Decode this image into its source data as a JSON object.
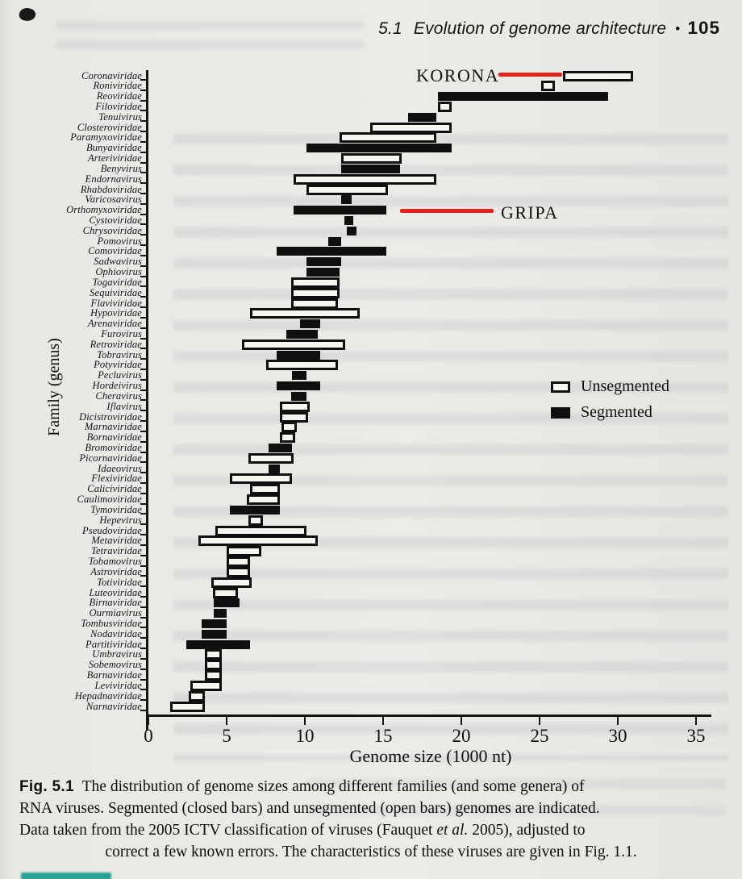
{
  "page": {
    "header": {
      "section_number": "5.1",
      "title": "Evolution of genome architecture",
      "bullet": "•",
      "page_number": "105"
    },
    "annotations": [
      {
        "text": "KORONA",
        "color": "#e3241e",
        "target_family": "Coronaviridae"
      },
      {
        "text": "GRIPA",
        "color": "#e3241e",
        "target_family": "Orthomyxoviridae"
      }
    ],
    "caption": {
      "fig_label": "Fig. 5.1",
      "line1_rest": "The distribution of genome sizes among different families (and some genera) of",
      "line2": "RNA viruses. Segmented (closed bars) and unsegmented (open bars) genomes are indicated.",
      "line3_pre": "Data taken from the 2005 ICTV classification of viruses (Fauquet ",
      "line3_italic": "et al.",
      "line3_post": " 2005), adjusted to",
      "line4": "correct a few known errors. The characteristics of these viruses are given in Fig. 1.1."
    }
  },
  "chart_data": {
    "type": "bar",
    "subtype": "horizontal-range-bars",
    "title": "",
    "xlabel": "Genome size (1000 nt)",
    "ylabel": "Family (genus)",
    "xlim": [
      0,
      35
    ],
    "xticks": [
      0,
      5,
      10,
      15,
      20,
      25,
      30,
      35
    ],
    "grid": false,
    "legend_position": "right-middle",
    "legend": [
      {
        "label": "Unsegmented",
        "style": "open"
      },
      {
        "label": "Segmented",
        "style": "closed"
      }
    ],
    "families": [
      {
        "name": "Coronaviridae",
        "min": 26.5,
        "max": 31.0,
        "segmented": false
      },
      {
        "name": "Roniviridae",
        "min": 25.1,
        "max": 26.0,
        "segmented": false
      },
      {
        "name": "Reoviridae",
        "min": 18.5,
        "max": 29.4,
        "segmented": true
      },
      {
        "name": "Filoviridae",
        "min": 18.5,
        "max": 19.4,
        "segmented": false
      },
      {
        "name": "Tenuivirus",
        "min": 16.6,
        "max": 18.4,
        "segmented": true
      },
      {
        "name": "Closteroviridae",
        "min": 14.2,
        "max": 19.4,
        "segmented": false
      },
      {
        "name": "Paramyxoviridae",
        "min": 12.2,
        "max": 18.4,
        "segmented": false
      },
      {
        "name": "Bunyaviridae",
        "min": 10.1,
        "max": 19.4,
        "segmented": true
      },
      {
        "name": "Arteriviridae",
        "min": 12.3,
        "max": 16.2,
        "segmented": false
      },
      {
        "name": "Benyvirus",
        "min": 12.3,
        "max": 16.1,
        "segmented": true
      },
      {
        "name": "Endornavirus",
        "min": 9.3,
        "max": 18.4,
        "segmented": false
      },
      {
        "name": "Rhabdoviridae",
        "min": 10.1,
        "max": 15.3,
        "segmented": false
      },
      {
        "name": "Varicosavirus",
        "min": 12.3,
        "max": 13.0,
        "segmented": true
      },
      {
        "name": "Orthomyxoviridae",
        "min": 9.3,
        "max": 15.2,
        "segmented": true
      },
      {
        "name": "Cystoviridae",
        "min": 12.5,
        "max": 13.1,
        "segmented": true
      },
      {
        "name": "Chrysoviridae",
        "min": 12.7,
        "max": 13.3,
        "segmented": true
      },
      {
        "name": "Pomovirus",
        "min": 11.5,
        "max": 12.3,
        "segmented": true
      },
      {
        "name": "Comoviridae",
        "min": 8.2,
        "max": 15.2,
        "segmented": true
      },
      {
        "name": "Sadwavirus",
        "min": 10.1,
        "max": 12.3,
        "segmented": true
      },
      {
        "name": "Ophiovirus",
        "min": 10.1,
        "max": 12.2,
        "segmented": true
      },
      {
        "name": "Togaviridae",
        "min": 9.1,
        "max": 12.2,
        "segmented": false
      },
      {
        "name": "Sequiviridae",
        "min": 9.1,
        "max": 12.2,
        "segmented": false
      },
      {
        "name": "Flaviviridae",
        "min": 9.1,
        "max": 12.1,
        "segmented": false
      },
      {
        "name": "Hypoviridae",
        "min": 6.5,
        "max": 13.5,
        "segmented": false
      },
      {
        "name": "Arenaviridae",
        "min": 9.7,
        "max": 11.0,
        "segmented": true
      },
      {
        "name": "Furovirus",
        "min": 8.8,
        "max": 10.8,
        "segmented": true
      },
      {
        "name": "Retroviridae",
        "min": 6.0,
        "max": 12.6,
        "segmented": false
      },
      {
        "name": "Tobravirus",
        "min": 8.2,
        "max": 11.0,
        "segmented": true
      },
      {
        "name": "Potyviridae",
        "min": 7.5,
        "max": 12.1,
        "segmented": false
      },
      {
        "name": "Pecluvirus",
        "min": 9.2,
        "max": 10.1,
        "segmented": true
      },
      {
        "name": "Hordeivirus",
        "min": 8.2,
        "max": 11.0,
        "segmented": true
      },
      {
        "name": "Cheravirus",
        "min": 9.1,
        "max": 10.1,
        "segmented": true
      },
      {
        "name": "Iflavirus",
        "min": 8.4,
        "max": 10.3,
        "segmented": false
      },
      {
        "name": "Dicistroviridae",
        "min": 8.4,
        "max": 10.2,
        "segmented": false
      },
      {
        "name": "Marnaviridae",
        "min": 8.5,
        "max": 9.5,
        "segmented": false
      },
      {
        "name": "Bornaviridae",
        "min": 8.4,
        "max": 9.4,
        "segmented": false
      },
      {
        "name": "Bromoviridae",
        "min": 7.7,
        "max": 9.2,
        "segmented": true
      },
      {
        "name": "Picornaviridae",
        "min": 6.4,
        "max": 9.3,
        "segmented": false
      },
      {
        "name": "Idaeovirus",
        "min": 7.7,
        "max": 8.4,
        "segmented": true
      },
      {
        "name": "Flexiviridae",
        "min": 5.2,
        "max": 9.2,
        "segmented": false
      },
      {
        "name": "Caliciviridae",
        "min": 6.5,
        "max": 8.4,
        "segmented": false
      },
      {
        "name": "Caulimoviridae",
        "min": 6.3,
        "max": 8.4,
        "segmented": false
      },
      {
        "name": "Tymoviridae",
        "min": 5.2,
        "max": 8.4,
        "segmented": true
      },
      {
        "name": "Hepevirus",
        "min": 6.4,
        "max": 7.3,
        "segmented": false
      },
      {
        "name": "Pseudoviridae",
        "min": 4.3,
        "max": 10.1,
        "segmented": false
      },
      {
        "name": "Metaviridae",
        "min": 3.2,
        "max": 10.8,
        "segmented": false
      },
      {
        "name": "Tetraviridae",
        "min": 5.0,
        "max": 7.2,
        "segmented": false
      },
      {
        "name": "Tobamovirus",
        "min": 5.0,
        "max": 6.5,
        "segmented": false
      },
      {
        "name": "Astroviridae",
        "min": 5.0,
        "max": 6.5,
        "segmented": false
      },
      {
        "name": "Totiviridae",
        "min": 4.0,
        "max": 6.6,
        "segmented": false
      },
      {
        "name": "Luteoviridae",
        "min": 4.1,
        "max": 5.7,
        "segmented": false
      },
      {
        "name": "Birnaviridae",
        "min": 4.2,
        "max": 5.8,
        "segmented": true
      },
      {
        "name": "Ourmiavirus",
        "min": 4.2,
        "max": 5.0,
        "segmented": true
      },
      {
        "name": "Tombusviridae",
        "min": 3.4,
        "max": 5.0,
        "segmented": true
      },
      {
        "name": "Nodaviridae",
        "min": 3.4,
        "max": 5.0,
        "segmented": true
      },
      {
        "name": "Partitiviridae",
        "min": 2.4,
        "max": 6.5,
        "segmented": true
      },
      {
        "name": "Umbravirus",
        "min": 3.6,
        "max": 4.7,
        "segmented": false
      },
      {
        "name": "Sobemovirus",
        "min": 3.6,
        "max": 4.7,
        "segmented": false
      },
      {
        "name": "Barnaviridae",
        "min": 3.6,
        "max": 4.7,
        "segmented": false
      },
      {
        "name": "Leviviridae",
        "min": 2.7,
        "max": 4.7,
        "segmented": false
      },
      {
        "name": "Hepadnaviridae",
        "min": 2.6,
        "max": 3.6,
        "segmented": false
      },
      {
        "name": "Narnaviridae",
        "min": 1.4,
        "max": 3.6,
        "segmented": false
      }
    ]
  }
}
